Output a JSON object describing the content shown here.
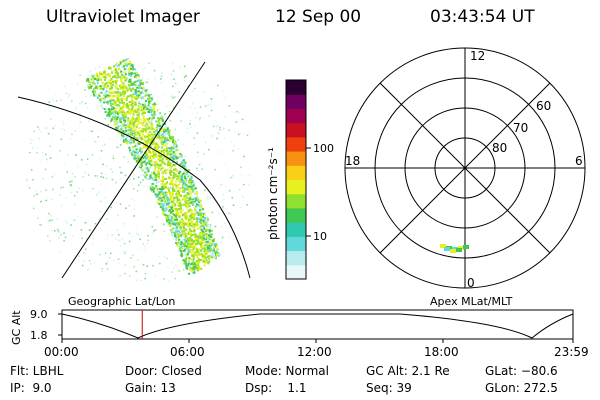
{
  "header": {
    "title": "Ultraviolet Imager",
    "date": "12 Sep 00",
    "time": "03:43:54 UT"
  },
  "colorbar": {
    "unit_label": "photon cm⁻²s⁻¹",
    "tick_labels": [
      "100",
      "10"
    ],
    "colors": [
      "#e8f8f8",
      "#b8ecec",
      "#60d8dc",
      "#30c8b0",
      "#40c850",
      "#90e030",
      "#e8f020",
      "#f8d018",
      "#f89010",
      "#f04010",
      "#c81020",
      "#a00050",
      "#700060",
      "#2a0030"
    ]
  },
  "polar_plot": {
    "mlt_labels": [
      "12",
      "18",
      "6",
      "0"
    ],
    "lat_labels": [
      "60",
      "70",
      "80"
    ]
  },
  "timeline": {
    "ylabel": "GC Alt",
    "yticks": [
      "9.0",
      "1.8"
    ],
    "left_caption": "Geographic Lat/Lon",
    "right_caption": "Apex MLat/MLT",
    "xticks": [
      "00:00",
      "06:00",
      "12:00",
      "18:00",
      "23:59"
    ],
    "current_time_fraction": 0.157
  },
  "info_rows": [
    [
      "Flt: LBHL",
      "Door: Closed",
      "Mode: Normal",
      "GC Alt: 2.1 Re",
      "GLat: −80.6"
    ],
    [
      "IP:  9.0",
      "Gain: 13",
      "Dsp:    1.1",
      "Seq: 39",
      "GLon: 272.5"
    ]
  ],
  "colors": {
    "marker": "#c00000",
    "aurora_green": "#40c850",
    "aurora_yellow": "#e8f020"
  }
}
